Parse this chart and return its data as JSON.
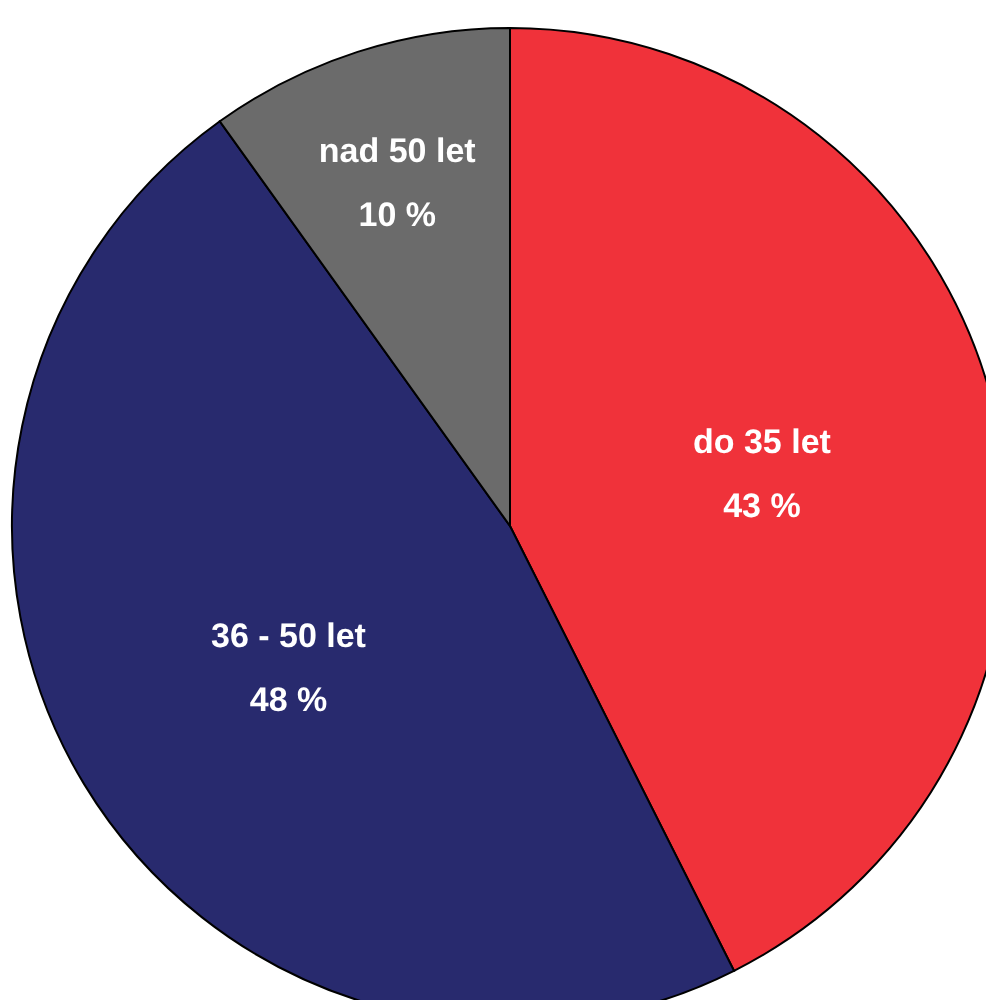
{
  "chart_data": {
    "type": "pie",
    "categories": [
      "do 35 let",
      "36 - 50 let",
      "nad 50 let"
    ],
    "values": [
      43,
      48,
      10
    ],
    "colors": [
      "#f0323a",
      "#282a6e",
      "#6b6b6b"
    ],
    "value_labels": [
      "43 %",
      "48 %",
      "10 %"
    ]
  }
}
